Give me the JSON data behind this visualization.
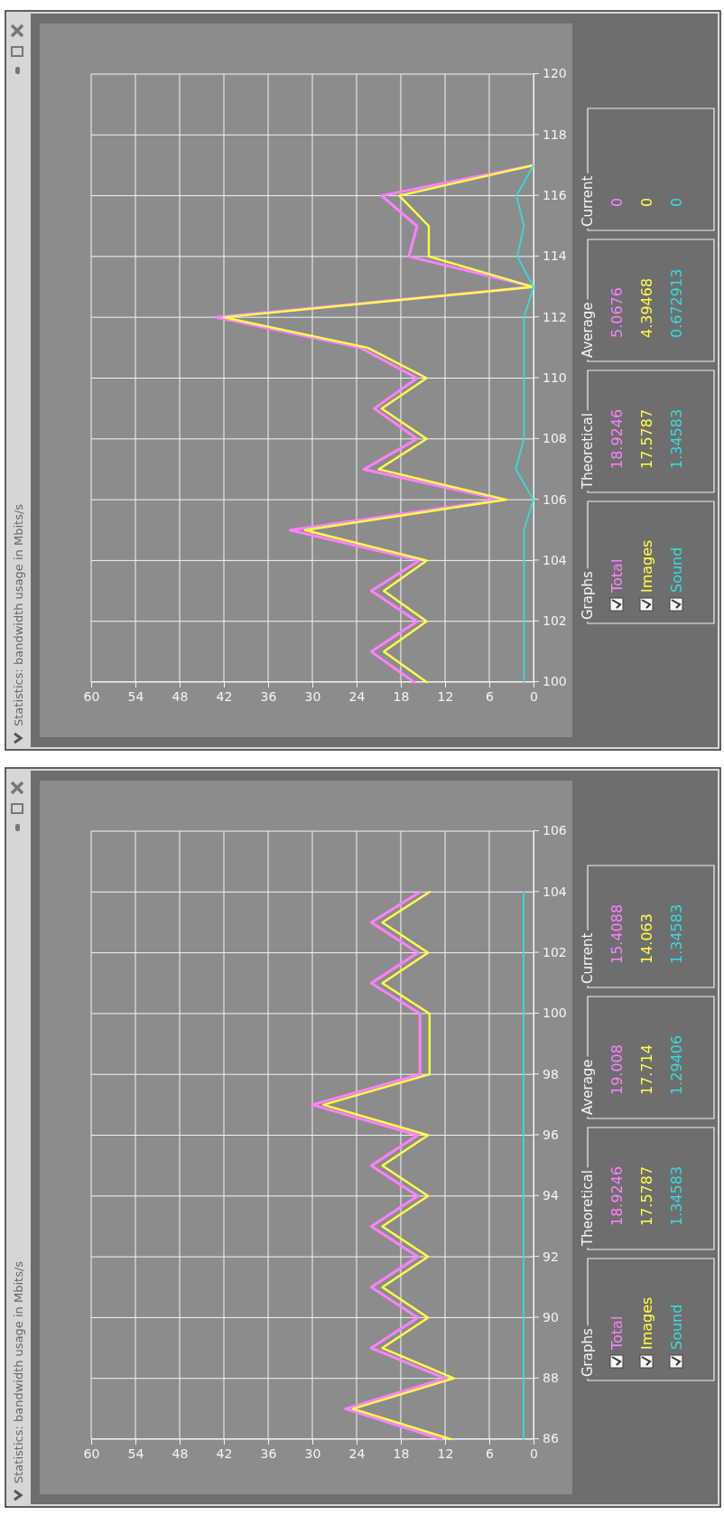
{
  "chart_data": [
    {
      "type": "line",
      "title": "Statistics: bandwidth usage in Mbits/s",
      "legend_title": "Graphs",
      "legend": "bottom",
      "grid": true,
      "xlim": [
        60,
        0
      ],
      "xticks": [
        60,
        54,
        48,
        42,
        36,
        30,
        24,
        18,
        12,
        6,
        0
      ],
      "ylim": [
        100,
        120
      ],
      "yticks": [
        100,
        102,
        104,
        106,
        108,
        110,
        112,
        114,
        116,
        118,
        120
      ],
      "series": [
        {
          "name": "Total",
          "color": "#ff80ff",
          "x": [
            16.2,
            22,
            15.8,
            22,
            15.5,
            33,
            4.4,
            23,
            15.8,
            21.6,
            15.8,
            23.5,
            43,
            0,
            16.9,
            15.8,
            20.6,
            0
          ],
          "values": [
            100,
            101,
            102,
            103,
            104,
            105,
            106,
            107,
            108,
            109,
            110,
            111,
            112,
            113,
            114,
            115,
            116,
            117
          ]
        },
        {
          "name": "Images",
          "color": "#ffff44",
          "x": [
            14.5,
            20.3,
            14.5,
            20.3,
            14.5,
            31,
            3.7,
            21,
            14.5,
            20.6,
            14.5,
            22.5,
            42,
            0,
            14.2,
            14.2,
            18.2,
            0
          ],
          "values": [
            100,
            101,
            102,
            103,
            104,
            105,
            106,
            107,
            108,
            109,
            110,
            111,
            112,
            113,
            114,
            115,
            116,
            117
          ]
        },
        {
          "name": "Sound",
          "color": "#33dddd",
          "x": [
            1.3,
            1.3,
            1.3,
            1.3,
            1.3,
            1.3,
            0,
            2.4,
            1.3,
            1.3,
            1.3,
            1.3,
            1.3,
            0,
            2.2,
            1.3,
            2.3,
            0
          ],
          "values": [
            100,
            101,
            102,
            103,
            104,
            105,
            106,
            107,
            108,
            109,
            110,
            111,
            112,
            113,
            114,
            115,
            116,
            117
          ]
        }
      ],
      "annotations": [
        "Theoretical",
        "18.9246",
        "17.5787",
        "1.34583",
        "Average",
        "5.0676",
        "4.39468",
        "0.672913",
        "Current",
        "0",
        "0",
        "0"
      ]
    },
    {
      "type": "line",
      "title": "Statistics: bandwidth usage in Mbits/s",
      "legend_title": "Graphs",
      "legend": "bottom",
      "grid": true,
      "xlim": [
        60,
        0
      ],
      "xticks": [
        60,
        54,
        48,
        42,
        36,
        30,
        24,
        18,
        12,
        6,
        0
      ],
      "ylim": [
        86,
        106
      ],
      "yticks": [
        86,
        88,
        90,
        92,
        94,
        96,
        98,
        100,
        102,
        104,
        106
      ],
      "series": [
        {
          "name": "Total",
          "color": "#ff80ff",
          "x": [
            12.5,
            25.5,
            12,
            22,
            15.7,
            22,
            15.7,
            22,
            15.7,
            22,
            15.7,
            30,
            15.4,
            15.4,
            15.4,
            22,
            15.7,
            22,
            15.4
          ],
          "values": [
            86,
            87,
            88,
            89,
            90,
            91,
            92,
            93,
            94,
            95,
            96,
            97,
            98,
            99,
            100,
            101,
            102,
            103,
            104
          ]
        },
        {
          "name": "Images",
          "color": "#ffff44",
          "x": [
            11.2,
            24.5,
            10.8,
            20.5,
            14.3,
            20.5,
            14.3,
            20.5,
            14.3,
            20.5,
            14.3,
            28.5,
            14.1,
            14.1,
            14.1,
            20.5,
            14.3,
            20.5,
            14.1
          ],
          "values": [
            86,
            87,
            88,
            89,
            90,
            91,
            92,
            93,
            94,
            95,
            96,
            97,
            98,
            99,
            100,
            101,
            102,
            103,
            104
          ]
        },
        {
          "name": "Sound",
          "color": "#33dddd",
          "x": [
            1.35,
            1.35,
            1.35,
            1.35,
            1.35,
            1.35,
            1.35,
            1.35,
            1.35,
            1.35,
            1.35,
            1.35,
            1.35,
            1.35,
            1.35,
            1.35,
            1.35,
            1.35,
            1.35
          ],
          "values": [
            86,
            87,
            88,
            89,
            90,
            91,
            92,
            93,
            94,
            95,
            96,
            97,
            98,
            99,
            100,
            101,
            102,
            103,
            104
          ]
        }
      ],
      "annotations": [
        "Theoretical",
        "18.9246",
        "17.5787",
        "1.34583",
        "Average",
        "19.008",
        "17.714",
        "1.29406",
        "Current",
        "15.4088",
        "14.063",
        "1.34583"
      ]
    }
  ]
}
